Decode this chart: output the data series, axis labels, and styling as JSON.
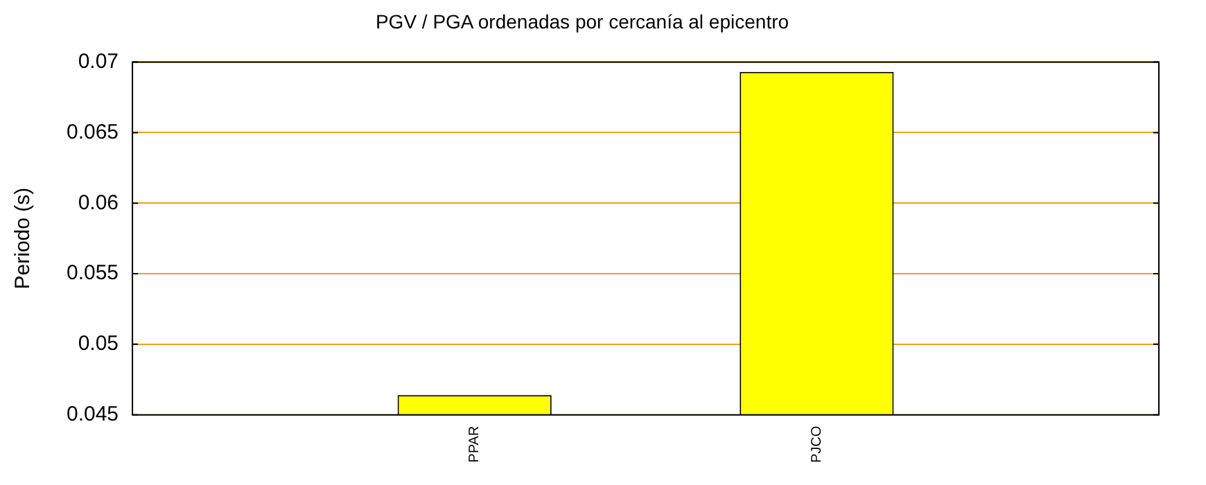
{
  "chart_data": {
    "type": "bar",
    "title": "PGV / PGA ordenadas por cercanía al epicentro",
    "ylabel": "Periodo (s)",
    "categories": [
      "PPAR",
      "PJCO"
    ],
    "values": [
      0.0464,
      0.0693
    ],
    "color": "#ffff00",
    "ylim": [
      0.045,
      0.07
    ],
    "yticks": [
      0.045,
      0.05,
      0.055,
      0.06,
      0.065,
      0.07
    ],
    "grid": "y",
    "legend": false
  }
}
